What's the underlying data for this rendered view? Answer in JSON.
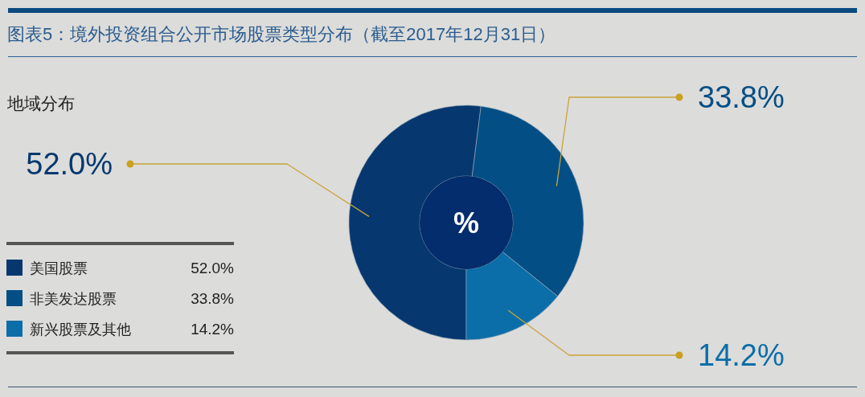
{
  "chart_data": {
    "type": "donut",
    "title": "图表5：境外投资组合公开市场股票类型分布（截至2017年12月31日）",
    "subtitle": "地域分布",
    "categories": [
      "美国股票",
      "非美发达股票",
      "新兴股票及其他"
    ],
    "values": [
      52.0,
      33.8,
      14.2
    ],
    "colors": [
      "#06386f",
      "#034e85",
      "#0c6ea8"
    ],
    "value_labels": [
      "52.0%",
      "33.8%",
      "14.2%"
    ],
    "annotations": [
      "%"
    ],
    "legend": "bottom left"
  }
}
